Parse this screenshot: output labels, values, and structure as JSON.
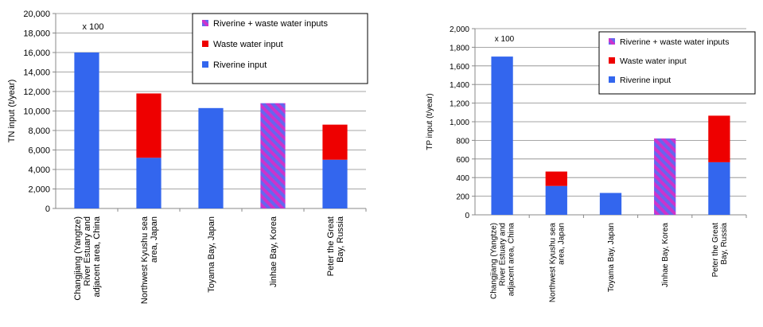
{
  "chart_data": [
    {
      "type": "bar",
      "stacked": true,
      "ylabel": "TN input (t/year)",
      "ylim": [
        0,
        20000
      ],
      "yticks": [
        "0",
        "2,000",
        "4,000",
        "6,000",
        "8,000",
        "10,000",
        "12,000",
        "14,000",
        "16,000",
        "18,000",
        "20,000"
      ],
      "categories": [
        [
          "Changjiang (Yangtze)",
          "River Estuary and",
          "adjacent area, China"
        ],
        [
          "Northwest Kyushu sea",
          "area, Japan"
        ],
        [
          "Toyama Bay, Japan"
        ],
        [
          "Jinhae Bay, Korea"
        ],
        [
          "Peter the Great",
          "Bay, Russia"
        ]
      ],
      "series": [
        {
          "name": "Riverine input",
          "values": [
            16000,
            5200,
            10300,
            0,
            5000
          ]
        },
        {
          "name": "Waste water input",
          "values": [
            0,
            6600,
            0,
            0,
            3600
          ]
        },
        {
          "name": "Riverine + waste water inputs",
          "values": [
            0,
            0,
            0,
            10800,
            0
          ]
        }
      ],
      "annotation": "x 100",
      "legend": "top-right",
      "grid": true
    },
    {
      "type": "bar",
      "stacked": true,
      "ylabel": "TP input (t/year)",
      "ylim": [
        0,
        2000
      ],
      "yticks": [
        "0",
        "200",
        "400",
        "600",
        "800",
        "1,000",
        "1,200",
        "1,400",
        "1,600",
        "1,800",
        "2,000"
      ],
      "categories": [
        [
          "Changjiang (Yangtze)",
          "River Estuary and",
          "adjacent area, China"
        ],
        [
          "Northwest Kyushu sea",
          "area, Japan"
        ],
        [
          "Toyama Bay, Japan"
        ],
        [
          "Jinhae Bay, Korea"
        ],
        [
          "Peter the Great",
          "Bay, Russia"
        ]
      ],
      "series": [
        {
          "name": "Riverine input",
          "values": [
            1700,
            310,
            235,
            0,
            565
          ]
        },
        {
          "name": "Waste water input",
          "values": [
            0,
            155,
            0,
            0,
            500
          ]
        },
        {
          "name": "Riverine + waste water inputs",
          "values": [
            0,
            0,
            0,
            820,
            0
          ]
        }
      ],
      "annotation": "x 100",
      "legend": "top-right",
      "grid": true
    }
  ],
  "colors": {
    "riverine": "#3366ee",
    "wastewater": "#ee0000",
    "stripe_a": "#cc33cc",
    "stripe_b": "#6666ee",
    "grid": "#888888",
    "axis": "#888888"
  }
}
